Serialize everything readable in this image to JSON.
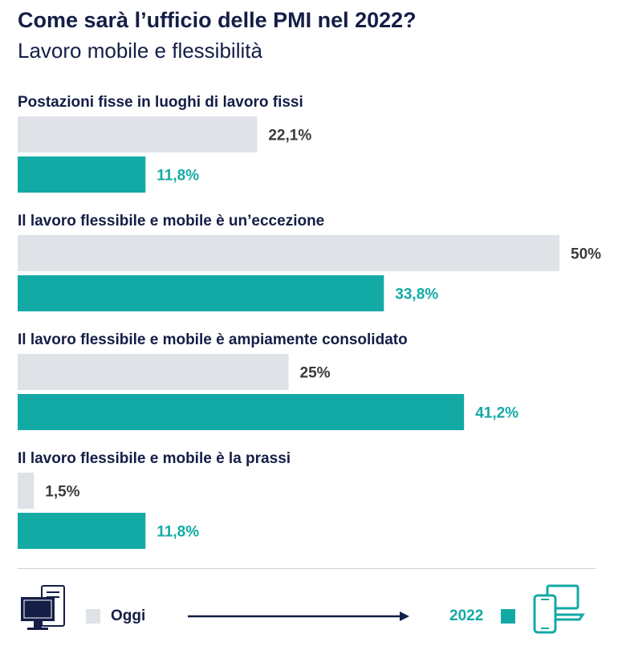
{
  "title": "Come sarà l’ufficio delle PMI nel 2022?",
  "subtitle": "Lavoro mobile e flessibilità",
  "colors": {
    "oggi": "#dfe2e6",
    "y2022": "#13aaa5",
    "text_dark": "#3a3a3a",
    "text_teal": "#13aaa5",
    "navy": "#141e46"
  },
  "legend": {
    "oggi_label": "Oggi",
    "y2022_label": "2022",
    "oggi_icon": "desktop-computer-icon",
    "y2022_icon": "laptop-smartphone-icon"
  },
  "chart_data": {
    "type": "bar",
    "orientation": "horizontal",
    "categories": [
      "Postazioni fisse in luoghi di lavoro fissi",
      "Il lavoro flessibile e mobile è un’eccezione",
      "Il lavoro flessibile e mobile è ampiamente consolidato",
      "Il lavoro flessibile e mobile è la prassi"
    ],
    "series": [
      {
        "name": "Oggi",
        "values": [
          22.1,
          50,
          25,
          1.5
        ],
        "labels": [
          "22,1%",
          "50%",
          "25%",
          "1,5%"
        ],
        "color": "#dfe2e6"
      },
      {
        "name": "2022",
        "values": [
          11.8,
          33.8,
          41.2,
          11.8
        ],
        "labels": [
          "11,8%",
          "33,8%",
          "41,2%",
          "11,8%"
        ],
        "color": "#13aaa5"
      }
    ],
    "xlim": [
      0,
      50
    ],
    "grid": false,
    "legend_position": "bottom"
  }
}
